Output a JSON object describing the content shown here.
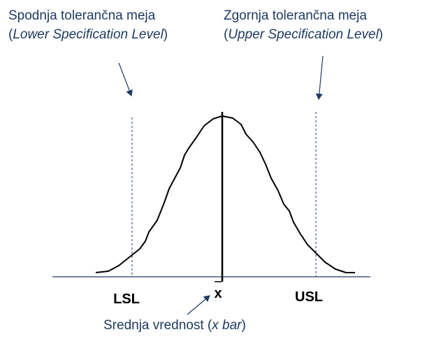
{
  "lower_label": {
    "title": "Spodnja tolerančna meja",
    "open": "(",
    "italic": "Lower Specification Level",
    "close": ")"
  },
  "upper_label": {
    "title": "Zgornja tolerančna meja",
    "open": "(",
    "italic": "Upper Specification Level",
    "close": ")"
  },
  "axis_labels": {
    "lsl": "LSL",
    "mean": "x",
    "usl": "USL"
  },
  "mean_label": {
    "text": "Srednja vrednost (",
    "italic": "x bar",
    "close": ")"
  }
}
